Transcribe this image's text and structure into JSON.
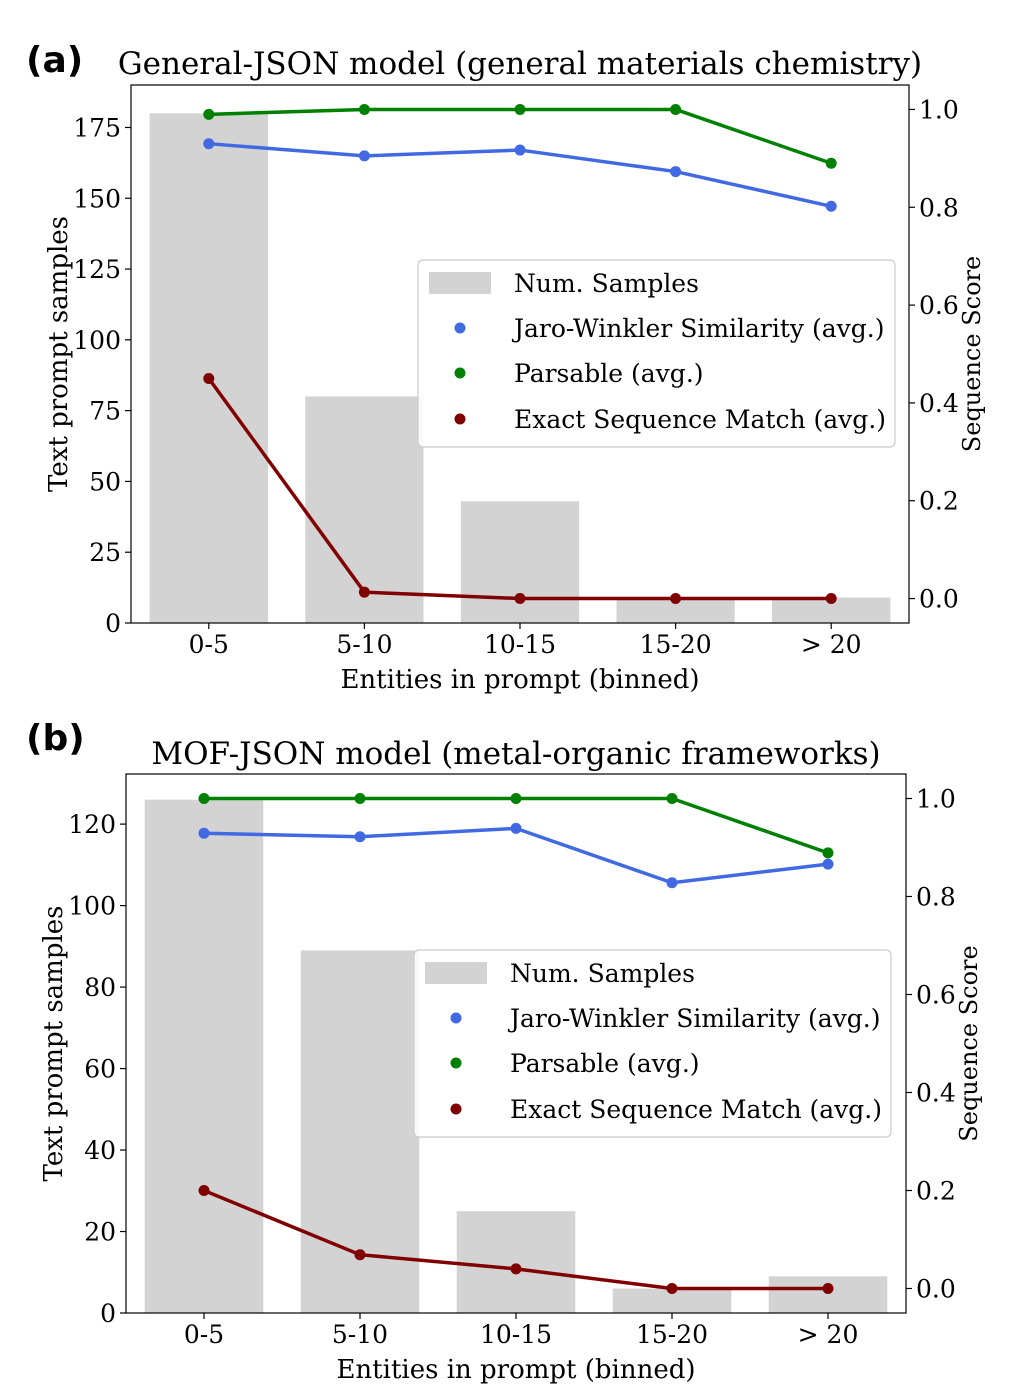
{
  "chart_data": [
    {
      "panel_label": "(a)",
      "type": "bar",
      "title": "General-JSON model (general materials chemistry)",
      "xlabel": "Entities in prompt (binned)",
      "ylabel": "Text prompt samples",
      "y2label": "Sequence Score",
      "categories": [
        "0-5",
        "5-10",
        "10-15",
        "15-20",
        "> 20"
      ],
      "ylim": [
        0,
        190
      ],
      "yticks": [
        "0",
        "25",
        "50",
        "75",
        "100",
        "125",
        "150",
        "175"
      ],
      "ytick_values": [
        0,
        25,
        50,
        75,
        100,
        125,
        150,
        175
      ],
      "y2lim": [
        -0.05,
        1.05
      ],
      "y2ticks": [
        "0.0",
        "0.2",
        "0.4",
        "0.6",
        "0.8",
        "1.0"
      ],
      "y2tick_values": [
        0,
        0.2,
        0.4,
        0.6,
        0.8,
        1.0
      ],
      "legend_position": "center-right",
      "bars": {
        "name": "Num. Samples",
        "color": "#d3d3d3",
        "values": [
          180,
          80,
          43,
          9,
          9
        ]
      },
      "series": [
        {
          "name": "Jaro-Winkler Similarity (avg.)",
          "type": "line",
          "axis": "right",
          "color": "#4169e1",
          "values": [
            0.93,
            0.905,
            0.917,
            0.873,
            0.802
          ]
        },
        {
          "name": "Parsable (avg.)",
          "type": "line",
          "axis": "right",
          "color": "#008000",
          "values": [
            0.99,
            1.0,
            1.0,
            1.0,
            0.89
          ]
        },
        {
          "name": "Exact Sequence Match (avg.)",
          "type": "line",
          "axis": "right",
          "color": "#800000",
          "values": [
            0.45,
            0.013,
            0.0,
            0.0,
            0.0
          ]
        }
      ]
    },
    {
      "panel_label": "(b)",
      "type": "bar",
      "title": "MOF-JSON model (metal-organic frameworks)",
      "xlabel": "Entities in prompt (binned)",
      "ylabel": "Text prompt samples",
      "y2label": "Sequence Score",
      "categories": [
        "0-5",
        "5-10",
        "10-15",
        "15-20",
        "> 20"
      ],
      "ylim": [
        0,
        132.3
      ],
      "yticks": [
        "0",
        "20",
        "40",
        "60",
        "80",
        "100",
        "120"
      ],
      "ytick_values": [
        0,
        20,
        40,
        60,
        80,
        100,
        120
      ],
      "y2lim": [
        -0.05,
        1.05
      ],
      "y2ticks": [
        "0.0",
        "0.2",
        "0.4",
        "0.6",
        "0.8",
        "1.0"
      ],
      "y2tick_values": [
        0,
        0.2,
        0.4,
        0.6,
        0.8,
        1.0
      ],
      "legend_position": "center-right",
      "bars": {
        "name": "Num. Samples",
        "color": "#d3d3d3",
        "values": [
          126,
          89,
          25,
          6,
          9
        ]
      },
      "series": [
        {
          "name": "Jaro-Winkler Similarity (avg.)",
          "type": "line",
          "axis": "right",
          "color": "#4169e1",
          "values": [
            0.929,
            0.922,
            0.939,
            0.828,
            0.866
          ]
        },
        {
          "name": "Parsable (avg.)",
          "type": "line",
          "axis": "right",
          "color": "#008000",
          "values": [
            1.0,
            1.0,
            1.0,
            1.0,
            0.889
          ]
        },
        {
          "name": "Exact Sequence Match (avg.)",
          "type": "line",
          "axis": "right",
          "color": "#800000",
          "values": [
            0.2,
            0.069,
            0.04,
            0.0,
            0.0
          ]
        }
      ]
    }
  ]
}
